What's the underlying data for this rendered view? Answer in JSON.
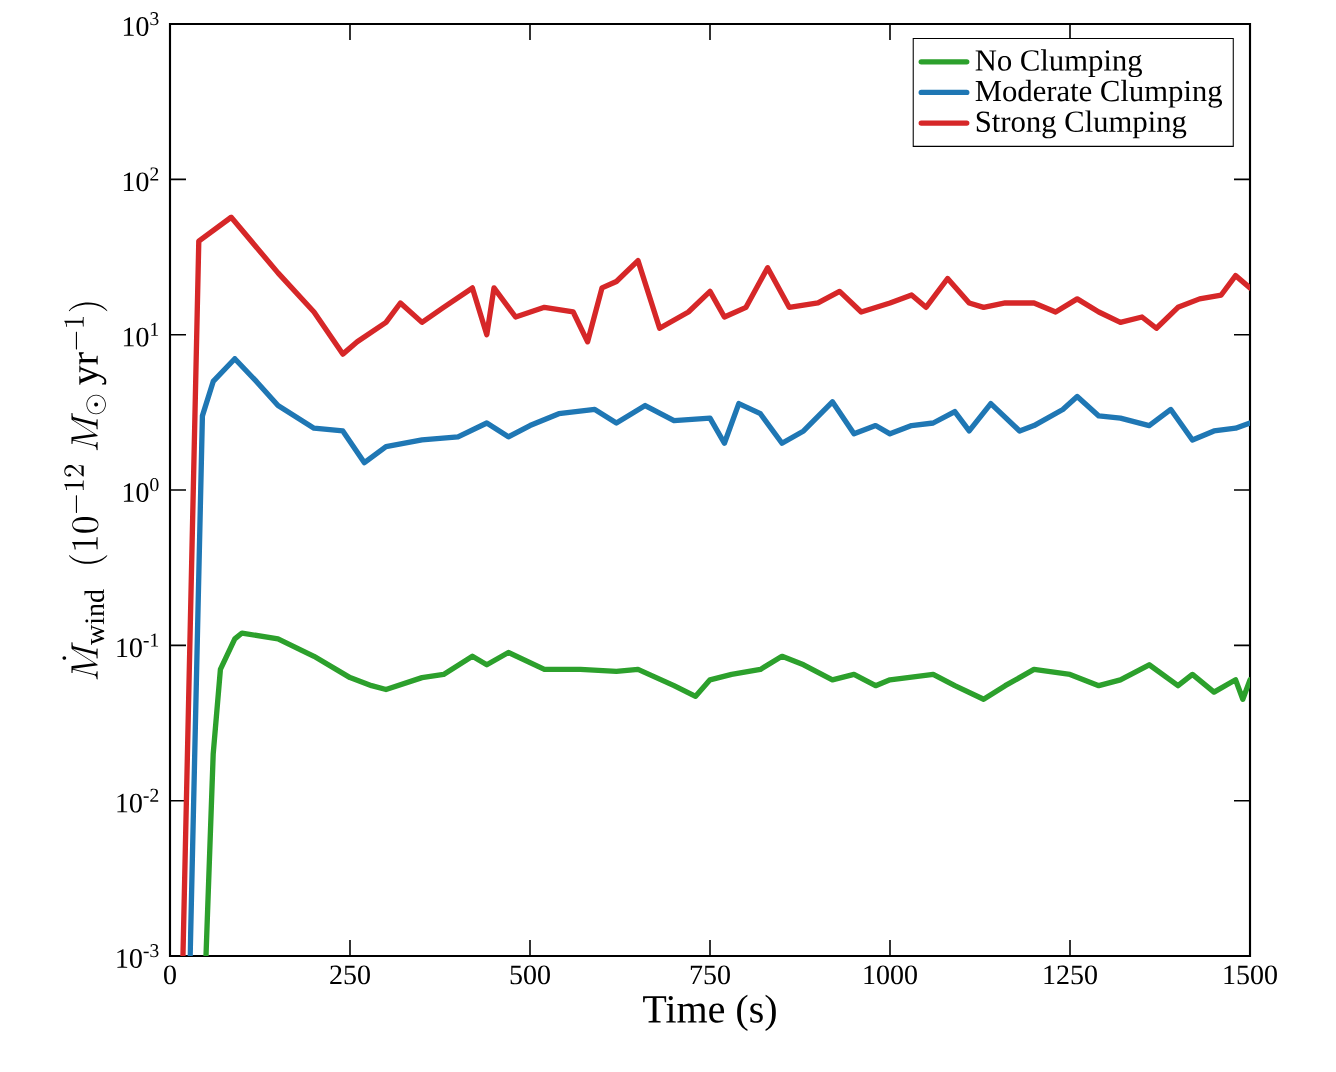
{
  "chart_data": {
    "type": "line",
    "xlabel": "Time (s)",
    "ylabel": "\\dot{M}_{\\rm wind}\\ \\ (10^{-12}\\ M_\\odot\\,{\\rm yr}^{-1})",
    "log": "y",
    "grid": false,
    "legend": "top right",
    "line_style": "solid",
    "marker": "none",
    "xlim": [
      0,
      1500
    ],
    "xticks": [
      0,
      250,
      500,
      750,
      1000,
      1250,
      1500
    ],
    "ylim": [
      0.001,
      1000
    ],
    "yticks": [
      {
        "value": 0.001,
        "label": "10$^{-3}$"
      },
      {
        "value": 0.01,
        "label": "10$^{-2}$"
      },
      {
        "value": 0.1,
        "label": "10$^{-1}$"
      },
      {
        "value": 1,
        "label": "10$^{0}$"
      },
      {
        "value": 10,
        "label": "10$^{1}$"
      },
      {
        "value": 100,
        "label": "10$^{2}$"
      },
      {
        "value": 1000,
        "label": "10$^{3}$"
      }
    ],
    "series": [
      {
        "name": "No Clumping",
        "color": "#2ca02c",
        "x": [
          50,
          60,
          70,
          90,
          100,
          150,
          200,
          250,
          280,
          300,
          350,
          380,
          420,
          440,
          470,
          520,
          570,
          620,
          650,
          700,
          730,
          750,
          780,
          820,
          850,
          880,
          920,
          950,
          980,
          1000,
          1060,
          1090,
          1130,
          1160,
          1200,
          1250,
          1290,
          1320,
          1360,
          1400,
          1420,
          1450,
          1480,
          1490,
          1500
        ],
        "values": [
          0.001,
          0.02,
          0.07,
          0.11,
          0.12,
          0.11,
          0.085,
          0.062,
          0.055,
          0.052,
          0.062,
          0.065,
          0.085,
          0.075,
          0.09,
          0.07,
          0.07,
          0.068,
          0.07,
          0.055,
          0.047,
          0.06,
          0.065,
          0.07,
          0.085,
          0.075,
          0.06,
          0.065,
          0.055,
          0.06,
          0.065,
          0.055,
          0.045,
          0.055,
          0.07,
          0.065,
          0.055,
          0.06,
          0.075,
          0.055,
          0.065,
          0.05,
          0.06,
          0.045,
          0.06
        ]
      },
      {
        "name": "Moderate Clumping",
        "color": "#1f77b4",
        "x": [
          28,
          45,
          60,
          90,
          120,
          150,
          200,
          240,
          270,
          300,
          350,
          400,
          440,
          470,
          500,
          540,
          590,
          620,
          660,
          700,
          750,
          770,
          790,
          820,
          850,
          880,
          920,
          950,
          980,
          1000,
          1030,
          1060,
          1090,
          1110,
          1140,
          1180,
          1200,
          1240,
          1260,
          1290,
          1320,
          1360,
          1390,
          1420,
          1450,
          1480,
          1500
        ],
        "values": [
          0.001,
          3,
          5,
          7,
          5,
          3.5,
          2.5,
          2.4,
          1.5,
          1.9,
          2.1,
          2.2,
          2.7,
          2.2,
          2.6,
          3.1,
          3.3,
          2.7,
          3.5,
          2.8,
          2.9,
          2,
          3.6,
          3.1,
          2,
          2.4,
          3.7,
          2.3,
          2.6,
          2.3,
          2.6,
          2.7,
          3.2,
          2.4,
          3.6,
          2.4,
          2.6,
          3.3,
          4,
          3,
          2.9,
          2.6,
          3.3,
          2.1,
          2.4,
          2.5,
          2.7
        ]
      },
      {
        "name": "Strong Clumping",
        "color": "#d62728",
        "x": [
          18,
          40,
          85,
          150,
          200,
          240,
          260,
          300,
          320,
          350,
          380,
          420,
          440,
          450,
          480,
          520,
          560,
          580,
          600,
          620,
          650,
          680,
          720,
          750,
          770,
          800,
          830,
          860,
          900,
          930,
          960,
          1000,
          1030,
          1050,
          1080,
          1110,
          1130,
          1160,
          1200,
          1230,
          1260,
          1290,
          1320,
          1350,
          1370,
          1400,
          1430,
          1460,
          1480,
          1500
        ],
        "values": [
          0.001,
          40,
          57,
          25,
          14,
          7.5,
          9,
          12,
          16,
          12,
          15,
          20,
          10,
          20,
          13,
          15,
          14,
          9,
          20,
          22,
          30,
          11,
          14,
          19,
          13,
          15,
          27,
          15,
          16,
          19,
          14,
          16,
          18,
          15,
          23,
          16,
          15,
          16,
          16,
          14,
          17,
          14,
          12,
          13,
          11,
          15,
          17,
          18,
          24,
          20
        ]
      }
    ]
  }
}
